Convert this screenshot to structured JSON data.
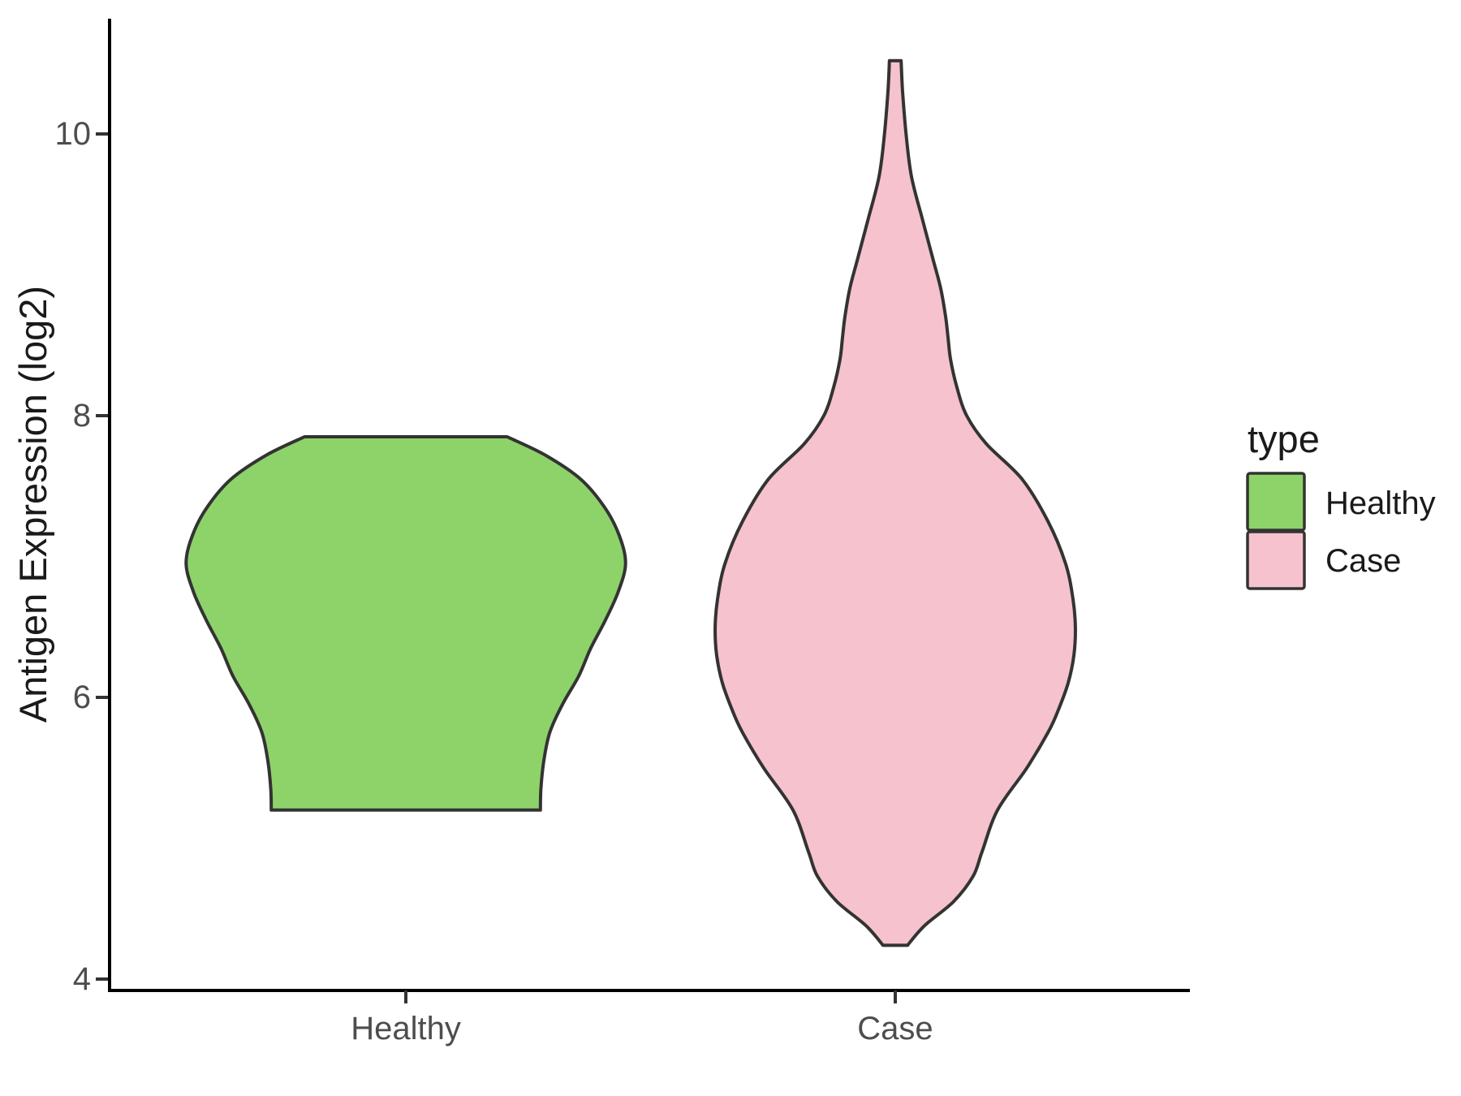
{
  "figure": {
    "background": "#ffffff"
  },
  "y_axis": {
    "title": "Antigen Expression (log2)",
    "tick_labels": [
      "4",
      "6",
      "8",
      "10"
    ],
    "tick_color": "#4d4d4d",
    "line_color": "#000000"
  },
  "x_axis": {
    "categories": [
      "Healthy",
      "Case"
    ],
    "label_color": "#4d4d4d",
    "line_color": "#000000"
  },
  "legend": {
    "title": "type",
    "items": [
      {
        "label": "Healthy",
        "color": "#8dd36a"
      },
      {
        "label": "Case",
        "color": "#f5c2cd"
      }
    ]
  },
  "chart_data": {
    "type": "violin",
    "title": "",
    "xlabel": "",
    "ylabel": "Antigen Expression (log2)",
    "categories": [
      "Healthy",
      "Case"
    ],
    "y_ticks": [
      4,
      6,
      8,
      10
    ],
    "ylim": [
      3.9,
      10.85
    ],
    "grid": false,
    "legend_position": "right",
    "outline_color": "#333333",
    "profile_format": "[y_value, halfwidth_in_category_axis_units]",
    "series": [
      {
        "name": "Healthy",
        "fill": "#8dd36a",
        "y_min": 5.2,
        "y_max": 7.85,
        "peak_value": 6.95,
        "max_halfwidth_units": 0.449,
        "profile": [
          [
            7.85,
            0.207
          ],
          [
            7.72,
            0.285
          ],
          [
            7.55,
            0.357
          ],
          [
            7.35,
            0.406
          ],
          [
            7.15,
            0.436
          ],
          [
            6.95,
            0.449
          ],
          [
            6.75,
            0.434
          ],
          [
            6.55,
            0.408
          ],
          [
            6.35,
            0.378
          ],
          [
            6.15,
            0.353
          ],
          [
            5.95,
            0.32
          ],
          [
            5.75,
            0.294
          ],
          [
            5.55,
            0.282
          ],
          [
            5.35,
            0.276
          ],
          [
            5.2,
            0.275
          ]
        ]
      },
      {
        "name": "Case",
        "fill": "#f5c2cd",
        "y_min": 4.24,
        "y_max": 10.52,
        "peak_value": 6.5,
        "max_halfwidth_units": 0.368,
        "profile": [
          [
            10.52,
            0.012
          ],
          [
            10.3,
            0.015
          ],
          [
            10.0,
            0.022
          ],
          [
            9.7,
            0.033
          ],
          [
            9.4,
            0.055
          ],
          [
            9.1,
            0.078
          ],
          [
            8.9,
            0.093
          ],
          [
            8.7,
            0.103
          ],
          [
            8.55,
            0.108
          ],
          [
            8.4,
            0.113
          ],
          [
            8.2,
            0.126
          ],
          [
            8.0,
            0.146
          ],
          [
            7.8,
            0.186
          ],
          [
            7.55,
            0.259
          ],
          [
            7.25,
            0.312
          ],
          [
            6.95,
            0.348
          ],
          [
            6.7,
            0.363
          ],
          [
            6.5,
            0.368
          ],
          [
            6.3,
            0.365
          ],
          [
            6.1,
            0.353
          ],
          [
            5.9,
            0.332
          ],
          [
            5.75,
            0.312
          ],
          [
            5.5,
            0.269
          ],
          [
            5.2,
            0.209
          ],
          [
            4.9,
            0.177
          ],
          [
            4.73,
            0.159
          ],
          [
            4.55,
            0.119
          ],
          [
            4.38,
            0.06
          ],
          [
            4.24,
            0.025
          ]
        ]
      }
    ]
  }
}
